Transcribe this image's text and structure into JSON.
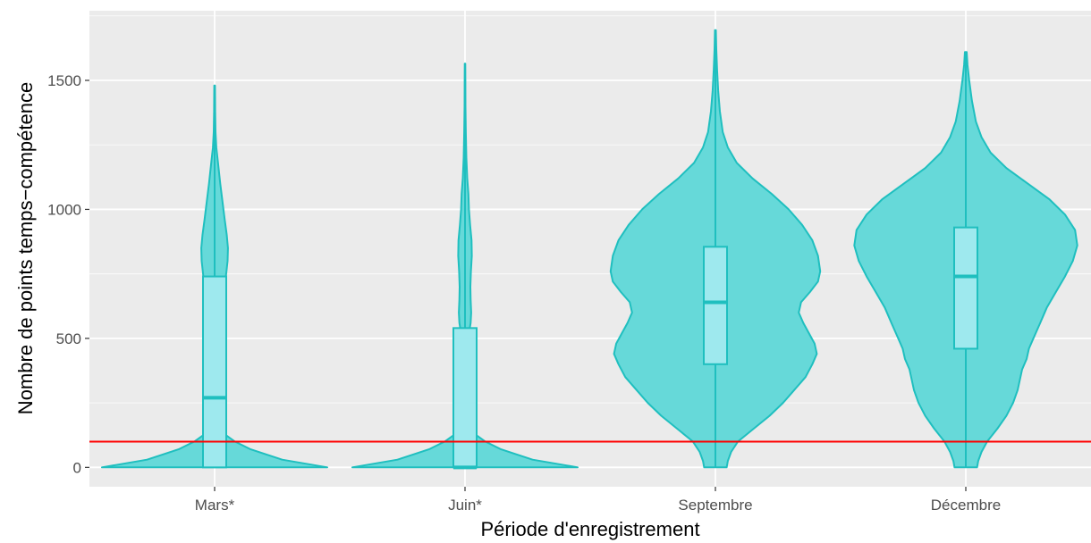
{
  "chart_data": {
    "type": "violin",
    "title": "",
    "xlabel": "Période d'enregistrement",
    "ylabel": "Nombre de points temps−compétence",
    "categories": [
      "Mars*",
      "Juin*",
      "Septembre",
      "Décembre"
    ],
    "ylim": [
      -75,
      1770
    ],
    "yticks": [
      0,
      500,
      1000,
      1500
    ],
    "reference_line": {
      "y": 100,
      "color": "#ff0000"
    },
    "colors": {
      "panel": "#ebebeb",
      "grid": "#ffffff",
      "violin_fill": "#66d9d9",
      "violin_stroke": "#1fbfbf",
      "box_fill": "#9ee9ee",
      "box_stroke": "#1fbfbf",
      "tick_text": "#4d4d4d"
    },
    "boxes": [
      {
        "category": "Mars*",
        "q1": 0,
        "median": 270,
        "q3": 740,
        "whisker_low": 0,
        "whisker_high": 1480
      },
      {
        "category": "Juin*",
        "q1": 0,
        "median": 0,
        "q3": 540,
        "whisker_low": 0,
        "whisker_high": 1565
      },
      {
        "category": "Septembre",
        "q1": 400,
        "median": 640,
        "q3": 855,
        "whisker_low": 0,
        "whisker_high": 1695
      },
      {
        "category": "Décembre",
        "q1": 460,
        "median": 740,
        "q3": 930,
        "whisker_low": 0,
        "whisker_high": 1610
      }
    ],
    "violins": [
      {
        "category": "Mars*",
        "density": [
          [
            0,
            1.0
          ],
          [
            30,
            0.6
          ],
          [
            70,
            0.32
          ],
          [
            100,
            0.18
          ],
          [
            125,
            0.1
          ],
          [
            160,
            0.045
          ],
          [
            220,
            0.04
          ],
          [
            300,
            0.045
          ],
          [
            380,
            0.06
          ],
          [
            430,
            0.08
          ],
          [
            470,
            0.09
          ],
          [
            520,
            0.085
          ],
          [
            570,
            0.07
          ],
          [
            620,
            0.07
          ],
          [
            680,
            0.085
          ],
          [
            740,
            0.1
          ],
          [
            800,
            0.115
          ],
          [
            850,
            0.118
          ],
          [
            900,
            0.108
          ],
          [
            960,
            0.09
          ],
          [
            1030,
            0.07
          ],
          [
            1100,
            0.05
          ],
          [
            1180,
            0.03
          ],
          [
            1240,
            0.015
          ],
          [
            1300,
            0.008
          ],
          [
            1380,
            0.005
          ],
          [
            1440,
            0.004
          ],
          [
            1480,
            0.003
          ]
        ]
      },
      {
        "category": "Juin*",
        "density": [
          [
            0,
            1.0
          ],
          [
            30,
            0.6
          ],
          [
            70,
            0.32
          ],
          [
            100,
            0.18
          ],
          [
            125,
            0.1
          ],
          [
            150,
            0.05
          ],
          [
            200,
            0.03
          ],
          [
            280,
            0.03
          ],
          [
            360,
            0.03
          ],
          [
            440,
            0.03
          ],
          [
            520,
            0.035
          ],
          [
            560,
            0.05
          ],
          [
            600,
            0.055
          ],
          [
            650,
            0.05
          ],
          [
            700,
            0.048
          ],
          [
            760,
            0.052
          ],
          [
            820,
            0.06
          ],
          [
            880,
            0.058
          ],
          [
            940,
            0.045
          ],
          [
            1000,
            0.035
          ],
          [
            1060,
            0.03
          ],
          [
            1120,
            0.02
          ],
          [
            1200,
            0.012
          ],
          [
            1300,
            0.007
          ],
          [
            1400,
            0.004
          ],
          [
            1500,
            0.003
          ],
          [
            1565,
            0.002
          ]
        ]
      },
      {
        "category": "Septembre",
        "density": [
          [
            0,
            0.1
          ],
          [
            25,
            0.11
          ],
          [
            60,
            0.14
          ],
          [
            100,
            0.2
          ],
          [
            150,
            0.34
          ],
          [
            200,
            0.48
          ],
          [
            250,
            0.6
          ],
          [
            300,
            0.7
          ],
          [
            350,
            0.8
          ],
          [
            400,
            0.86
          ],
          [
            440,
            0.9
          ],
          [
            480,
            0.88
          ],
          [
            520,
            0.83
          ],
          [
            560,
            0.78
          ],
          [
            600,
            0.74
          ],
          [
            640,
            0.76
          ],
          [
            680,
            0.84
          ],
          [
            720,
            0.91
          ],
          [
            760,
            0.93
          ],
          [
            820,
            0.91
          ],
          [
            880,
            0.86
          ],
          [
            940,
            0.77
          ],
          [
            1000,
            0.65
          ],
          [
            1060,
            0.5
          ],
          [
            1120,
            0.33
          ],
          [
            1180,
            0.19
          ],
          [
            1240,
            0.11
          ],
          [
            1300,
            0.065
          ],
          [
            1380,
            0.04
          ],
          [
            1460,
            0.025
          ],
          [
            1540,
            0.015
          ],
          [
            1620,
            0.008
          ],
          [
            1695,
            0.004
          ]
        ]
      },
      {
        "category": "Décembre",
        "density": [
          [
            0,
            0.1
          ],
          [
            25,
            0.11
          ],
          [
            60,
            0.14
          ],
          [
            100,
            0.19
          ],
          [
            150,
            0.28
          ],
          [
            200,
            0.36
          ],
          [
            250,
            0.42
          ],
          [
            300,
            0.46
          ],
          [
            340,
            0.48
          ],
          [
            380,
            0.5
          ],
          [
            420,
            0.54
          ],
          [
            460,
            0.56
          ],
          [
            500,
            0.6
          ],
          [
            560,
            0.66
          ],
          [
            620,
            0.72
          ],
          [
            680,
            0.8
          ],
          [
            740,
            0.88
          ],
          [
            800,
            0.95
          ],
          [
            860,
            0.99
          ],
          [
            920,
            0.97
          ],
          [
            980,
            0.88
          ],
          [
            1040,
            0.74
          ],
          [
            1100,
            0.55
          ],
          [
            1160,
            0.36
          ],
          [
            1220,
            0.22
          ],
          [
            1280,
            0.14
          ],
          [
            1340,
            0.09
          ],
          [
            1420,
            0.055
          ],
          [
            1500,
            0.03
          ],
          [
            1560,
            0.015
          ],
          [
            1610,
            0.008
          ]
        ]
      }
    ]
  }
}
